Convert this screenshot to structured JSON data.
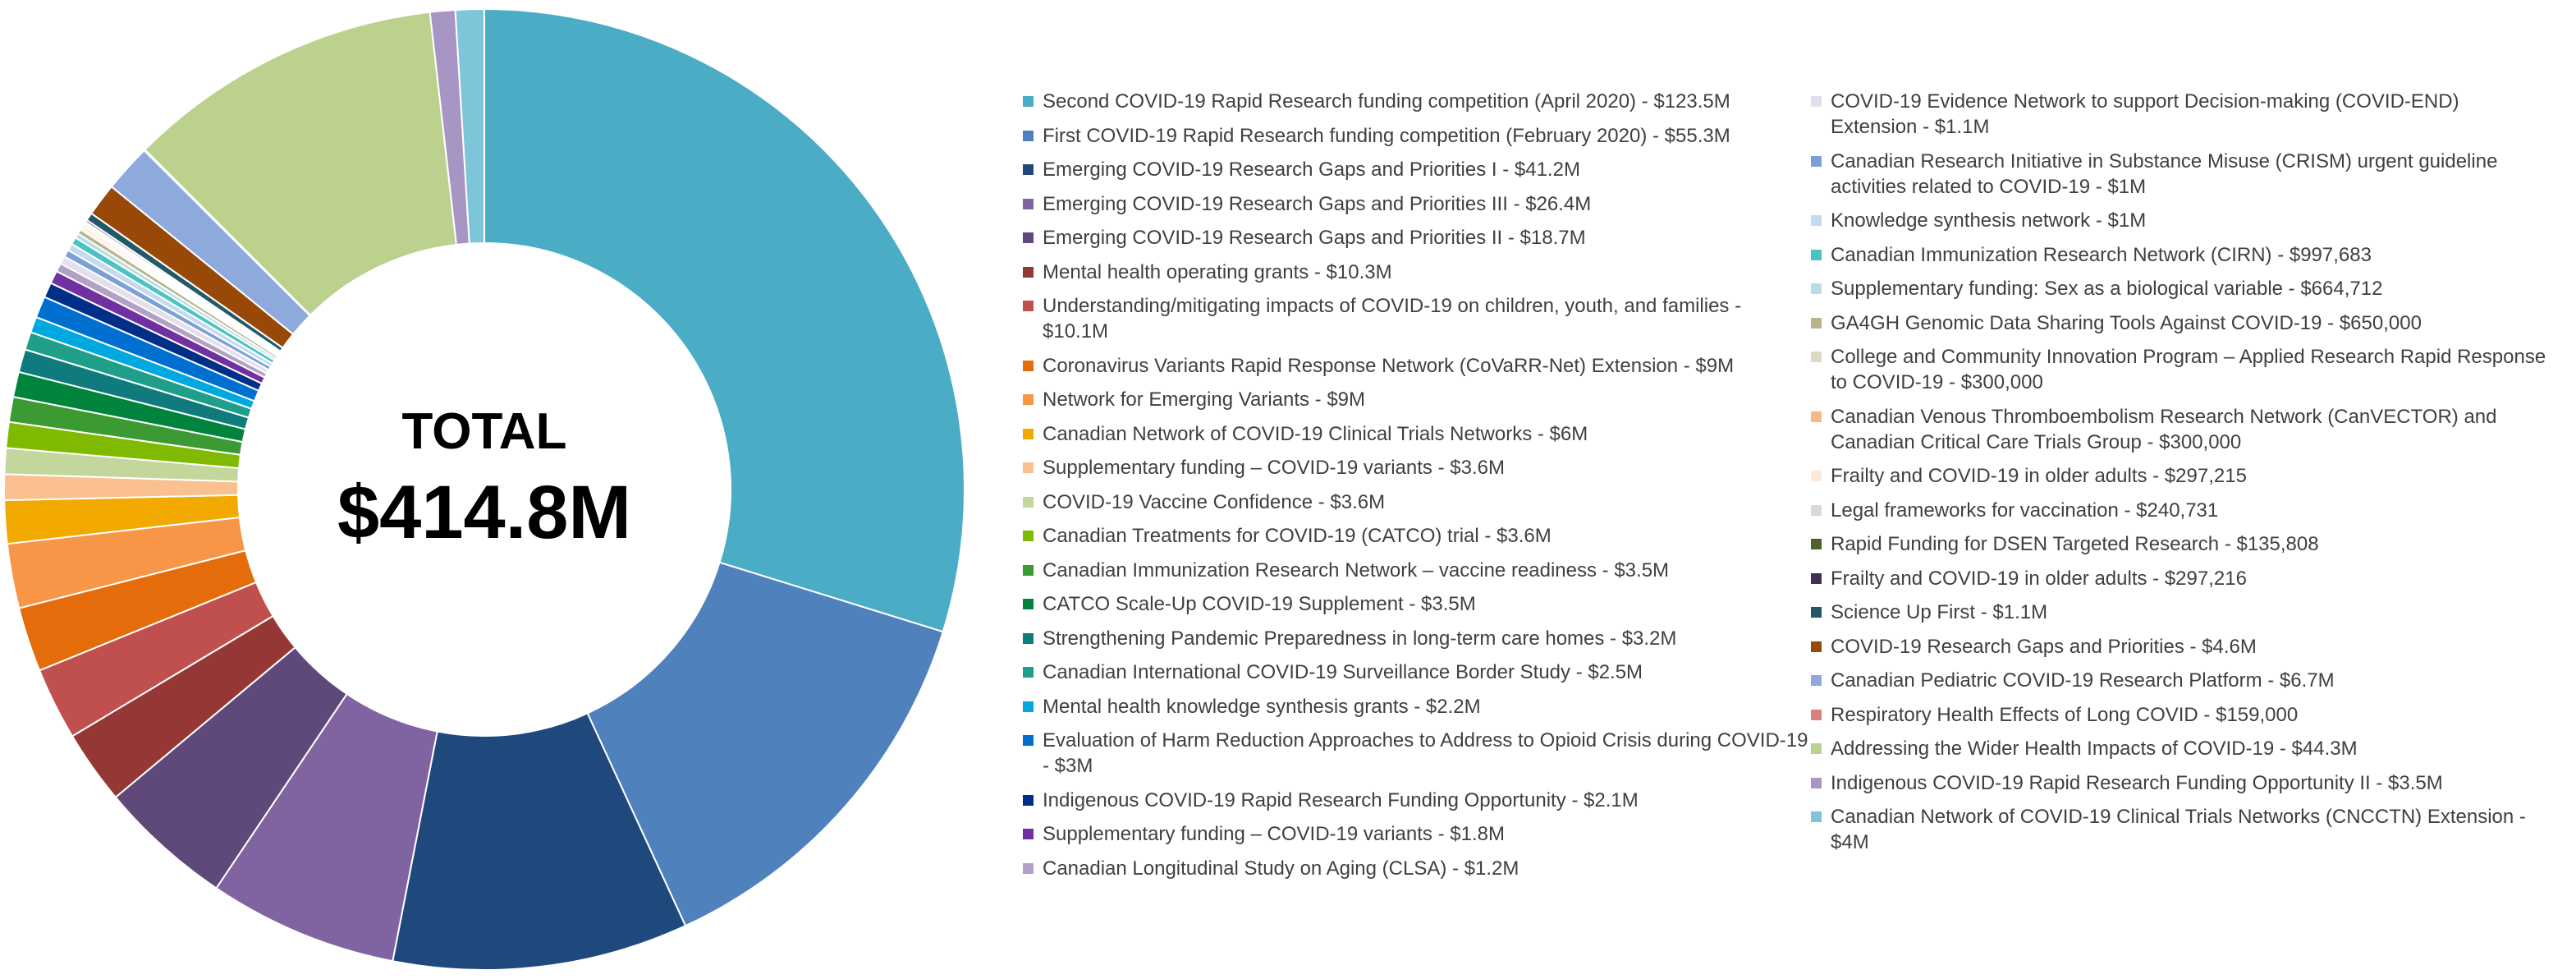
{
  "chart_data": {
    "type": "pie",
    "variant": "donut",
    "unit": "$M",
    "center_label": "TOTAL",
    "center_value": "$414.8M",
    "start": "top",
    "direction": "clockwise",
    "legend_placement": "right",
    "slices": [
      {
        "label": "Second COVID-19 Rapid Research funding competition (April 2020) - $123.5M",
        "value": 123.5,
        "color": "#4BACC6"
      },
      {
        "label": "First COVID-19 Rapid Research funding competition (February 2020) - $55.3M",
        "value": 55.3,
        "color": "#4F81BD"
      },
      {
        "label": "Emerging COVID-19 Research Gaps and Priorities I - $41.2M",
        "value": 41.2,
        "color": "#1F497D"
      },
      {
        "label": "Emerging COVID-19 Research Gaps and Priorities III - $26.4M",
        "value": 26.4,
        "color": "#8064A2"
      },
      {
        "label": "Emerging COVID-19 Research Gaps and Priorities II - $18.7M",
        "value": 18.7,
        "color": "#5F497A"
      },
      {
        "label": "Mental health operating grants - $10.3M",
        "value": 10.3,
        "color": "#953735"
      },
      {
        "label": "Understanding/mitigating impacts of COVID-19 on children, youth, and families - $10.1M",
        "value": 10.1,
        "color": "#C0504D"
      },
      {
        "label": "Coronavirus Variants Rapid Response Network (CoVaRR-Net) Extension - $9M",
        "value": 9,
        "color": "#E46C0A"
      },
      {
        "label": "Network for Emerging Variants - $9M",
        "value": 9,
        "color": "#F79646"
      },
      {
        "label": "Canadian Network of COVID-19 Clinical Trials Networks - $6M",
        "value": 6,
        "color": "#F2A900"
      },
      {
        "label": "Supplementary funding – COVID-19 variants - $3.6M",
        "value": 3.6,
        "color": "#FAC090"
      },
      {
        "label": "COVID-19 Vaccine Confidence - $3.6M",
        "value": 3.6,
        "color": "#C3D69B"
      },
      {
        "label": "Canadian Treatments for COVID-19 (CATCO) trial - $3.6M",
        "value": 3.6,
        "color": "#7FBA00"
      },
      {
        "label": "Canadian Immunization Research Network – vaccine readiness - $3.5M",
        "value": 3.5,
        "color": "#3C9A32"
      },
      {
        "label": "CATCO Scale-Up COVID-19 Supplement - $3.5M",
        "value": 3.5,
        "color": "#00843D"
      },
      {
        "label": "Strengthening Pandemic Preparedness in long-term care homes - $3.2M",
        "value": 3.2,
        "color": "#0F7B7D"
      },
      {
        "label": "Canadian International COVID-19 Surveillance Border Study - $2.5M",
        "value": 2.5,
        "color": "#1F9E89"
      },
      {
        "label": "Mental health knowledge synthesis grants - $2.2M",
        "value": 2.2,
        "color": "#00A8E0"
      },
      {
        "label": "Evaluation of Harm Reduction Approaches to Address to Opioid Crisis during COVID-19 - $3M",
        "value": 3,
        "color": "#0070D0"
      },
      {
        "label": "Indigenous COVID-19 Rapid Research Funding Opportunity - $2.1M",
        "value": 2.1,
        "color": "#002F87"
      },
      {
        "label": "Supplementary funding – COVID-19 variants - $1.8M",
        "value": 1.8,
        "color": "#7030A0"
      },
      {
        "label": "Canadian Longitudinal Study on Aging (CLSA) - $1.2M",
        "value": 1.2,
        "color": "#B2A1C7"
      },
      {
        "label": "COVID-19 Evidence Network to support Decision-making (COVID-END) Extension - $1.1M",
        "value": 1.1,
        "color": "#E4DFEC"
      },
      {
        "label": "Canadian Research Initiative in Substance Misuse (CRISM) urgent guideline activities related to COVID-19 - $1M",
        "value": 1,
        "color": "#7BA0D8"
      },
      {
        "label": "Knowledge synthesis network - $1M",
        "value": 1,
        "color": "#C5D9F1"
      },
      {
        "label": "Canadian Immunization Research Network (CIRN) - $997,683",
        "value": 0.997683,
        "color": "#4DC3C1"
      },
      {
        "label": "Supplementary funding: Sex as a biological variable - $664,712",
        "value": 0.664712,
        "color": "#B7DEE8"
      },
      {
        "label": "GA4GH Genomic Data Sharing Tools Against COVID-19 - $650,000",
        "value": 0.65,
        "color": "#B8B48C"
      },
      {
        "label": "College and Community Innovation Program – Applied Research Rapid Response to COVID-19 - $300,000",
        "value": 0.3,
        "color": "#DDD9C3"
      },
      {
        "label": "Canadian Venous Thromboembolism Research Network (CanVECTOR) and Canadian Critical Care Trials Group - $300,000",
        "value": 0.3,
        "color": "#FAB683"
      },
      {
        "label": "Frailty and COVID-19 in older adults - $297,215",
        "value": 0.297215,
        "color": "#FDE9D9"
      },
      {
        "label": "Legal frameworks for vaccination - $240,731",
        "value": 0.240731,
        "color": "#D9D9D9"
      },
      {
        "label": "Rapid Funding for DSEN Targeted Research - $135,808",
        "value": 0.135808,
        "color": "#4F6228"
      },
      {
        "label": "Frailty and COVID-19 in older adults - $297,216",
        "value": 0.297216,
        "color": "#3F3151"
      },
      {
        "label": "Science Up First - $1.1M",
        "value": 1.1,
        "color": "#215968"
      },
      {
        "label": "COVID-19 Research Gaps and Priorities - $4.6M",
        "value": 4.6,
        "color": "#984807"
      },
      {
        "label": "Canadian Pediatric COVID-19 Research Platform - $6.7M",
        "value": 6.7,
        "color": "#8EA9DB"
      },
      {
        "label": "Respiratory Health Effects of Long COVID - $159,000",
        "value": 0.159,
        "color": "#DA8080"
      },
      {
        "label": "Addressing the Wider Health Impacts of COVID-19 - $44.3M",
        "value": 44.3,
        "color": "#BDD18E"
      },
      {
        "label": "Indigenous COVID-19 Rapid Research Funding Opportunity II - $3.5M",
        "value": 3.5,
        "color": "#A795C3"
      },
      {
        "label": "Canadian Network of COVID-19 Clinical Trials Networks (CNCCTN) Extension - $4M",
        "value": 4,
        "color": "#7DC5D8"
      }
    ]
  }
}
